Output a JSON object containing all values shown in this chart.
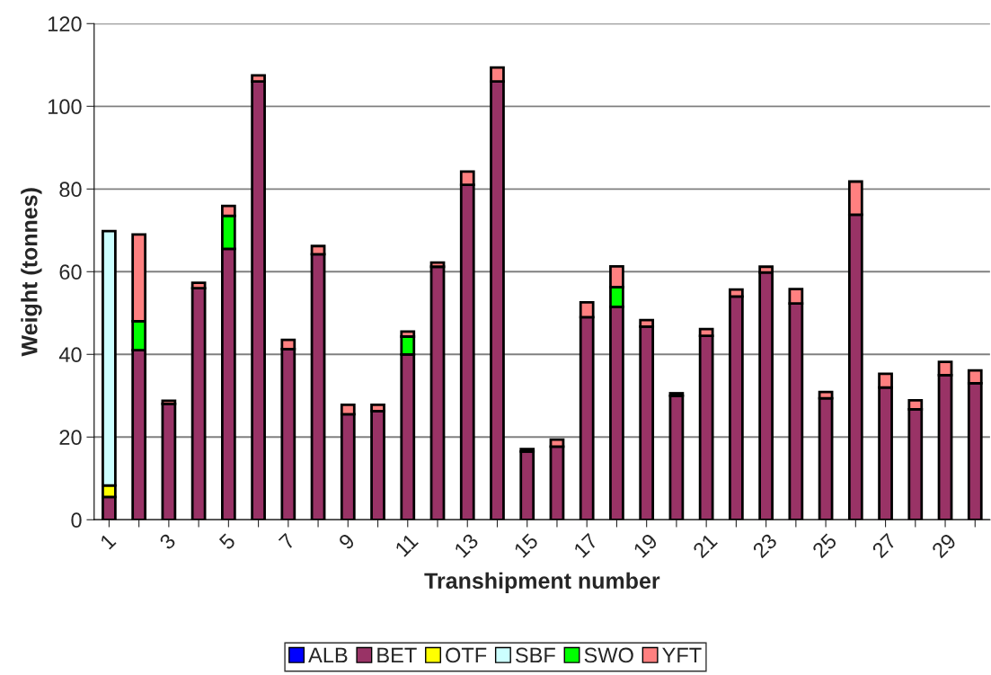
{
  "chart_data": {
    "type": "bar",
    "stacked": true,
    "xlabel": "Transhipment number",
    "ylabel": "Weight (tonnes)",
    "categories": [
      "1",
      null,
      "3",
      null,
      "5",
      null,
      "7",
      null,
      "9",
      null,
      "11",
      null,
      "13",
      null,
      "15",
      null,
      "17",
      null,
      "19",
      null,
      "21",
      null,
      "23",
      null,
      "25",
      null,
      "27",
      null,
      "29",
      null
    ],
    "series": [
      {
        "name": "ALB",
        "color": "#0000ff",
        "values": [
          null,
          null,
          null,
          null,
          null,
          null,
          null,
          null,
          null,
          null,
          null,
          null,
          null,
          null,
          null,
          null,
          null,
          null,
          null,
          null,
          null,
          null,
          null,
          null,
          null,
          null,
          null,
          null,
          null,
          null
        ]
      },
      {
        "name": "BET",
        "color": "#993366",
        "values": [
          5.5,
          41,
          28,
          56,
          65.5,
          106,
          41.3,
          64.2,
          25.5,
          26.3,
          40,
          61.2,
          81,
          106,
          16.5,
          17.7,
          49,
          51.5,
          46.7,
          30,
          44.5,
          54,
          59.8,
          52.3,
          29.4,
          73.8,
          32,
          26.7,
          35,
          33
        ]
      },
      {
        "name": "OTF",
        "color": "#ffff00",
        "values": [
          2.8,
          null,
          null,
          null,
          null,
          null,
          null,
          null,
          null,
          null,
          null,
          null,
          null,
          null,
          null,
          null,
          null,
          null,
          null,
          null,
          null,
          null,
          null,
          null,
          null,
          null,
          null,
          null,
          null,
          null
        ]
      },
      {
        "name": "SBF",
        "color": "#ccffff",
        "values": [
          61.5,
          null,
          null,
          null,
          null,
          null,
          null,
          null,
          null,
          null,
          null,
          null,
          null,
          null,
          null,
          null,
          null,
          null,
          null,
          null,
          null,
          null,
          null,
          null,
          null,
          null,
          null,
          null,
          null,
          null
        ]
      },
      {
        "name": "SWO",
        "color": "#00ff00",
        "values": [
          null,
          7,
          null,
          null,
          8,
          null,
          null,
          null,
          null,
          null,
          4.3,
          null,
          null,
          null,
          null,
          null,
          null,
          4.8,
          null,
          null,
          null,
          null,
          null,
          null,
          null,
          null,
          null,
          null,
          null,
          null
        ]
      },
      {
        "name": "YFT",
        "color": "#ff8080",
        "values": [
          null,
          21,
          0.8,
          1.3,
          2.4,
          1.5,
          2.2,
          2,
          2.3,
          1.5,
          1.2,
          1,
          3.2,
          3.4,
          0.6,
          1.7,
          3.6,
          5,
          1.6,
          0.6,
          1.6,
          1.7,
          1.4,
          3.5,
          1.5,
          8,
          3.3,
          2.2,
          3.2,
          3.1
        ]
      }
    ],
    "ylim": [
      0,
      120
    ],
    "yticks": [
      0,
      20,
      40,
      60,
      80,
      100,
      120
    ],
    "grid": "y",
    "legend": "bottom"
  }
}
